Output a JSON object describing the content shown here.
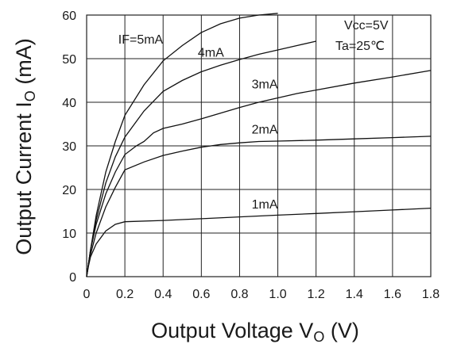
{
  "chart_data": {
    "type": "line",
    "xlabel": "Output Voltage V",
    "xlabel_sub": "O",
    "xlabel_unit": " (V)",
    "ylabel": "Output Current I",
    "ylabel_sub": "O",
    "ylabel_unit": " (mA)",
    "xlim": [
      0,
      1.8
    ],
    "ylim": [
      0,
      60
    ],
    "x_ticks": [
      "0",
      "0.2",
      "0.4",
      "0.6",
      "0.8",
      "1.0",
      "1.2",
      "1.4",
      "1.6",
      "1.8"
    ],
    "x_tick_values": [
      0,
      0.2,
      0.4,
      0.6,
      0.8,
      1.0,
      1.2,
      1.4,
      1.6,
      1.8
    ],
    "y_ticks": [
      "0",
      "10",
      "20",
      "30",
      "40",
      "50",
      "60"
    ],
    "y_tick_values": [
      0,
      10,
      20,
      30,
      40,
      50,
      60
    ],
    "grid": true,
    "conditions": [
      "Vcc=5V",
      "Ta=25℃"
    ],
    "series": [
      {
        "name": "IF=5mA",
        "x": [
          0,
          0.01,
          0.02,
          0.05,
          0.1,
          0.15,
          0.2,
          0.3,
          0.4,
          0.5,
          0.6,
          0.7,
          0.8,
          0.9,
          1.0
        ],
        "y": [
          0,
          3,
          6,
          14,
          24,
          31,
          37,
          44,
          49.5,
          53,
          56,
          58,
          59.3,
          60,
          60.4
        ]
      },
      {
        "name": "4mA",
        "x": [
          0,
          0.01,
          0.02,
          0.05,
          0.1,
          0.15,
          0.2,
          0.3,
          0.4,
          0.5,
          0.6,
          0.7,
          0.8,
          0.9,
          1.0,
          1.1,
          1.2
        ],
        "y": [
          0,
          3,
          6,
          13,
          21.5,
          27.5,
          32,
          38,
          42.5,
          45,
          47,
          48.5,
          49.8,
          51,
          52,
          53,
          54
        ]
      },
      {
        "name": "3mA",
        "x": [
          0,
          0.01,
          0.02,
          0.05,
          0.1,
          0.15,
          0.2,
          0.26,
          0.3,
          0.35,
          0.4,
          0.5,
          0.6,
          0.7,
          0.8,
          0.9,
          1.0,
          1.1,
          1.2,
          1.4,
          1.6,
          1.8
        ],
        "y": [
          0,
          3,
          6,
          12,
          19,
          24,
          28,
          30,
          31,
          33,
          34,
          35,
          36.2,
          37.5,
          38.8,
          40,
          41,
          42,
          42.8,
          44.4,
          45.8,
          47.3
        ]
      },
      {
        "name": "2mA",
        "x": [
          0,
          0.01,
          0.02,
          0.05,
          0.1,
          0.15,
          0.2,
          0.3,
          0.4,
          0.5,
          0.6,
          0.7,
          0.8,
          0.9,
          1.0,
          1.2,
          1.4,
          1.6,
          1.8
        ],
        "y": [
          0,
          3,
          5,
          10,
          16,
          20.5,
          24.5,
          26.3,
          27.8,
          28.8,
          29.7,
          30.3,
          30.7,
          31,
          31.1,
          31.3,
          31.6,
          31.9,
          32.2
        ]
      },
      {
        "name": "1mA",
        "x": [
          0,
          0.01,
          0.02,
          0.05,
          0.1,
          0.15,
          0.2,
          0.4,
          0.6,
          0.8,
          1.0,
          1.2,
          1.4,
          1.6,
          1.8
        ],
        "y": [
          0,
          2.5,
          4.5,
          7.5,
          10.5,
          12,
          12.6,
          12.9,
          13.3,
          13.7,
          14.1,
          14.5,
          14.9,
          15.3,
          15.7
        ]
      }
    ]
  }
}
